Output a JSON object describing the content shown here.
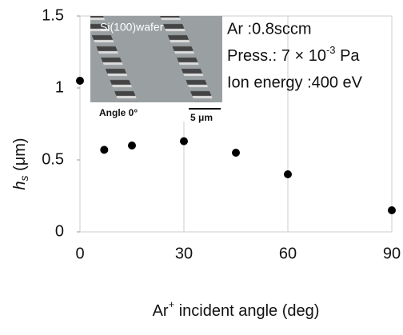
{
  "chart_data": {
    "type": "scatter",
    "x": [
      0,
      7,
      15,
      30,
      45,
      60,
      90
    ],
    "values": [
      1.05,
      0.57,
      0.6,
      0.63,
      0.55,
      0.4,
      0.15
    ],
    "color": "#000000",
    "xlim": [
      0,
      90
    ],
    "xticks": [
      0,
      30,
      60,
      90
    ],
    "ylim": [
      0,
      1.5
    ],
    "yticks": [
      0,
      0.5,
      1,
      1.5
    ],
    "grid": "x",
    "x_label": {
      "main": "Ar",
      "sup": "+",
      "rest": " incident angle (deg)"
    },
    "y_label": {
      "symbol": "h",
      "sub": "s",
      "unit": " (μm)"
    },
    "annotations": {
      "gas": "Ar :0.8sccm",
      "press_prefix": "Press.: 7 × 10",
      "press_exp": "-3",
      "press_unit": " Pa",
      "energy": "Ion energy :400 eV"
    },
    "inset": {
      "title": "Si(100)wafer",
      "angle": "Angle 0°",
      "scale": "5 μm"
    }
  }
}
